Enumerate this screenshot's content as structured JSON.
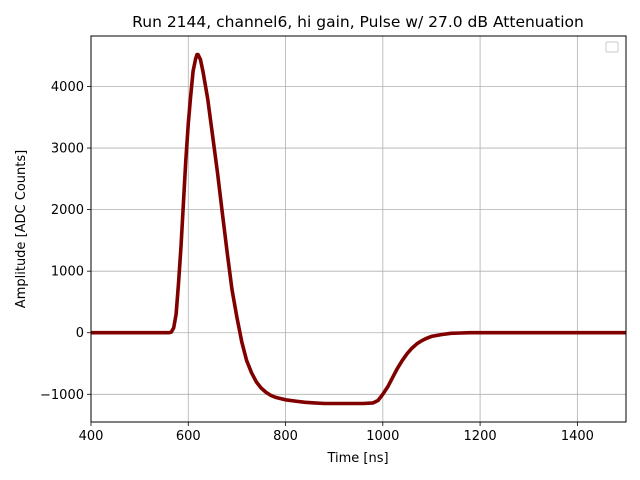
{
  "chart_data": {
    "type": "line",
    "title": "Run 2144, channel6, hi gain, Pulse w/ 27.0 dB Attenuation",
    "xlabel": "Time [ns]",
    "ylabel": "Amplitude [ADC Counts]",
    "xlim": [
      400,
      1500
    ],
    "ylim": [
      -1450,
      4820
    ],
    "xticks": [
      400,
      600,
      800,
      1000,
      1200,
      1400
    ],
    "yticks": [
      -1000,
      0,
      1000,
      2000,
      3000,
      4000
    ],
    "ytick_labels": [
      "−1000",
      "0",
      "1000",
      "2000",
      "3000",
      "4000"
    ],
    "grid": true,
    "legend": {
      "position": "top-right",
      "entries": []
    },
    "color": "#800000",
    "series": [
      {
        "x": [
          400,
          450,
          500,
          540,
          560,
          565,
          570,
          575,
          580,
          585,
          590,
          595,
          600,
          605,
          610,
          615,
          618,
          620,
          625,
          630,
          640,
          650,
          660,
          670,
          680,
          690,
          700,
          710,
          720,
          730,
          740,
          750,
          760,
          770,
          780,
          790,
          800,
          820,
          840,
          860,
          880,
          900,
          920,
          940,
          960,
          980,
          990,
          1000,
          1010,
          1020,
          1030,
          1040,
          1050,
          1060,
          1070,
          1080,
          1090,
          1100,
          1120,
          1140,
          1160,
          1180,
          1200,
          1250,
          1300,
          1350,
          1400,
          1450,
          1500
        ],
        "y": [
          0,
          0,
          0,
          0,
          0,
          10,
          80,
          300,
          800,
          1400,
          2100,
          2800,
          3400,
          3850,
          4250,
          4450,
          4520,
          4520,
          4440,
          4250,
          3800,
          3200,
          2600,
          1950,
          1300,
          700,
          250,
          -150,
          -450,
          -650,
          -800,
          -900,
          -970,
          -1020,
          -1050,
          -1070,
          -1090,
          -1110,
          -1130,
          -1140,
          -1150,
          -1150,
          -1150,
          -1150,
          -1150,
          -1140,
          -1100,
          -1000,
          -880,
          -730,
          -580,
          -450,
          -340,
          -250,
          -180,
          -130,
          -90,
          -60,
          -30,
          -10,
          -5,
          0,
          0,
          0,
          0,
          0,
          0,
          0,
          0
        ]
      }
    ]
  }
}
